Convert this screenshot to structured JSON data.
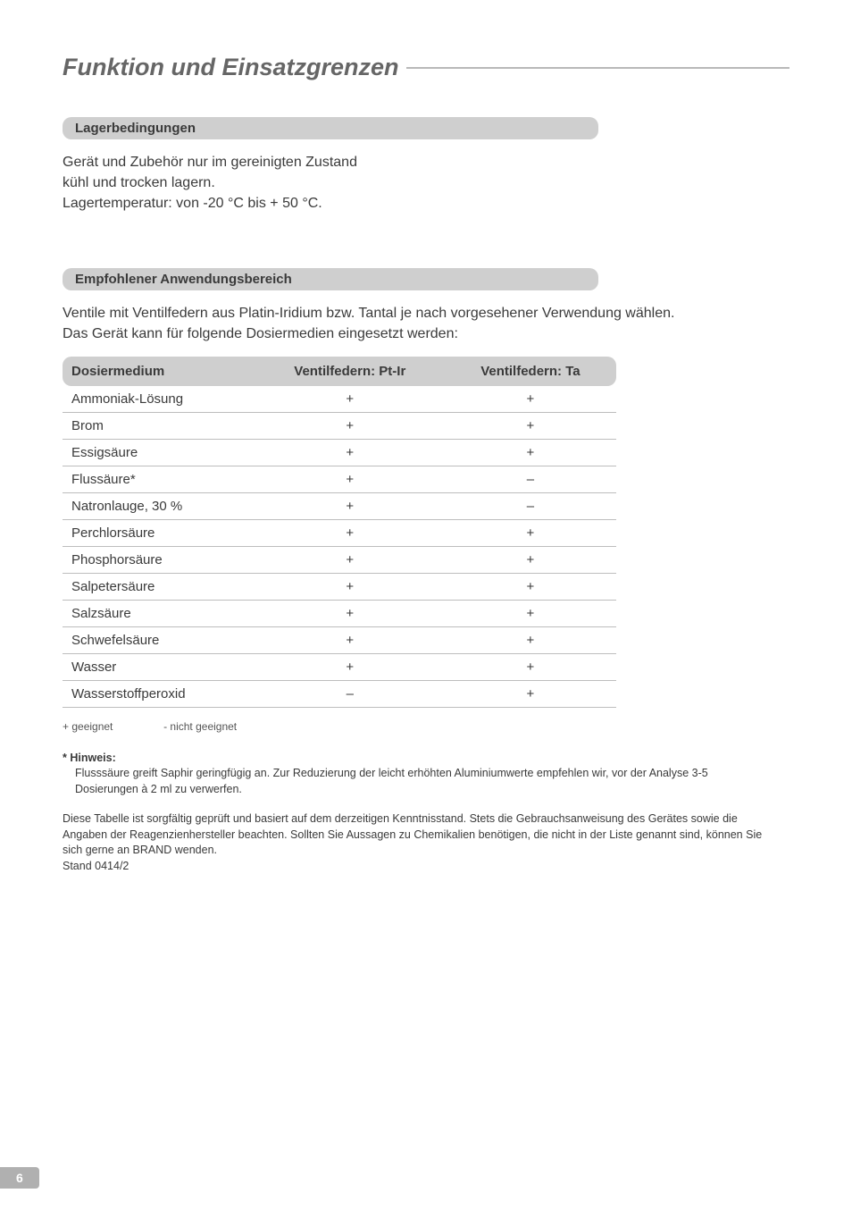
{
  "page": {
    "title": "Funktion und Einsatzgrenzen",
    "number": "6"
  },
  "storage": {
    "heading": "Lagerbedingungen",
    "line1": "Gerät und Zubehör nur im gereinigten Zustand",
    "line2": "kühl und trocken lagern.",
    "line3": "Lagertemperatur: von -20 °C bis + 50 °C."
  },
  "usage": {
    "heading": "Empfohlener Anwendungsbereich",
    "intro1": "Ventile mit Ventilfedern aus Platin-Iridium bzw. Tantal je nach vorgesehener Verwendung wählen.",
    "intro2": "Das Gerät kann für folgende Dosiermedien eingesetzt werden:"
  },
  "table": {
    "col_medium": "Dosiermedium",
    "col_ptir": "Ventilfedern: Pt-Ir",
    "col_ta": "Ventilfedern: Ta",
    "rows": [
      {
        "m": "Ammoniak-Lösung",
        "p": "+",
        "t": "+"
      },
      {
        "m": "Brom",
        "p": "+",
        "t": "+"
      },
      {
        "m": "Essigsäure",
        "p": "+",
        "t": "+"
      },
      {
        "m": "Flussäure*",
        "p": "+",
        "t": "–"
      },
      {
        "m": "Natronlauge, 30 %",
        "p": "+",
        "t": "–"
      },
      {
        "m": "Perchlorsäure",
        "p": "+",
        "t": "+"
      },
      {
        "m": "Phosphorsäure",
        "p": "+",
        "t": "+"
      },
      {
        "m": "Salpetersäure",
        "p": "+",
        "t": "+"
      },
      {
        "m": "Salzsäure",
        "p": "+",
        "t": "+"
      },
      {
        "m": "Schwefelsäure",
        "p": "+",
        "t": "+"
      },
      {
        "m": "Wasser",
        "p": "+",
        "t": "+"
      },
      {
        "m": "Wasserstoffperoxid",
        "p": "–",
        "t": "+"
      }
    ]
  },
  "legend": {
    "plus": "+ geeignet",
    "minus": "- nicht geeignet"
  },
  "note": {
    "label": "* Hinweis:",
    "text": "Flusssäure greift Saphir geringfügig an. Zur Reduzierung der leicht erhöhten Aluminiumwerte empfehlen wir, vor der Analyse 3-5 Dosierungen à 2 ml zu verwerfen."
  },
  "disclaimer": {
    "text": "Diese Tabelle ist sorgfältig geprüft und basiert auf dem derzeitigen Kenntnisstand. Stets die Gebrauchsanweisung des Gerätes sowie die Angaben der Reagenzienhersteller beachten. Sollten Sie Aussagen zu Chemikalien benötigen, die nicht in der Liste genannt sind, können Sie sich gerne an BRAND wenden.",
    "stand": "Stand 0414/2"
  }
}
